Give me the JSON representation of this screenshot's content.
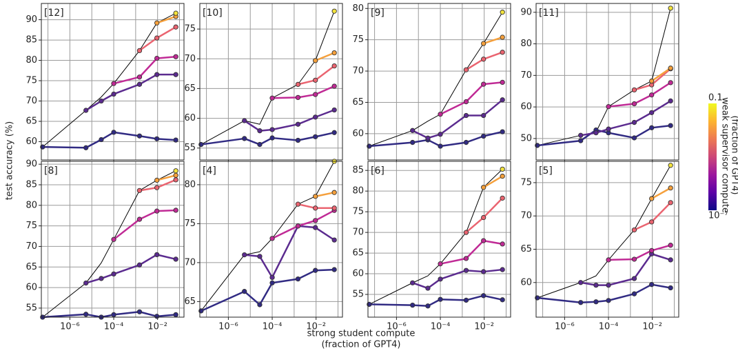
{
  "ylabel": "test accuracy (%)",
  "xlabel": [
    "strong student compute",
    "(fraction of GPT4)"
  ],
  "colorbar": {
    "title": [
      "weak supervisor compute",
      "(fraction of GPT4)"
    ],
    "lim": [
      1e-07,
      0.1
    ],
    "log": true,
    "ticks": [
      {
        "value": 0.1,
        "label": "0.1"
      },
      {
        "value": 1e-07,
        "label": "10⁻⁷"
      }
    ],
    "colors": [
      "#0d0887",
      "#5c01a6",
      "#9c179e",
      "#cc4778",
      "#ed7953",
      "#fdb42f",
      "#f0f921"
    ]
  },
  "chart_data": [
    {
      "type": "line",
      "annotation": "[12]",
      "xlog": true,
      "grid": true,
      "x": [
        5.7e-08,
        5.4e-06,
        2.7e-05,
        0.0001,
        0.0015,
        0.0093,
        0.068
      ],
      "xlim": [
        5e-08,
        0.16
      ],
      "xticks": [
        1e-06,
        0.0001,
        0.01
      ],
      "xminor": [
        1e-07,
        1e-05,
        0.001,
        0.1
      ],
      "ylim": [
        55.5,
        94
      ],
      "yticks": [
        60,
        65,
        70,
        75,
        80,
        85,
        90
      ],
      "series": [
        {
          "color": "#000000",
          "values": [
            58.7,
            67.7,
            71.0,
            74.3,
            82.4,
            89.2,
            91.6
          ]
        },
        {
          "color": "#312b83",
          "values": [
            58.7,
            58.5,
            60.5,
            62.3,
            61.4,
            60.7,
            60.4
          ]
        },
        {
          "color": "#5b2b8f",
          "values": [
            null,
            67.7,
            70.0,
            71.7,
            74.1,
            76.5,
            76.5
          ]
        },
        {
          "color": "#c02a95",
          "values": [
            null,
            null,
            null,
            74.3,
            75.9,
            80.5,
            80.9
          ]
        },
        {
          "color": "#ea6470",
          "values": [
            null,
            null,
            null,
            null,
            82.4,
            85.5,
            88.2
          ]
        },
        {
          "color": "#f5a03c",
          "values": [
            null,
            null,
            null,
            null,
            null,
            89.2,
            90.8
          ]
        },
        {
          "color": "#f3e33d",
          "values": [
            null,
            null,
            null,
            null,
            null,
            null,
            91.6
          ]
        }
      ]
    },
    {
      "type": "line",
      "annotation": "[10]",
      "xlog": true,
      "grid": true,
      "x": [
        5.7e-08,
        5.4e-06,
        2.7e-05,
        0.0001,
        0.0015,
        0.0093,
        0.068
      ],
      "xlim": [
        5e-08,
        0.16
      ],
      "xticks": [
        1e-06,
        0.0001,
        0.01
      ],
      "xminor": [
        1e-07,
        1e-05,
        0.001,
        0.1
      ],
      "ylim": [
        53,
        79.3
      ],
      "yticks": [
        55,
        60,
        65,
        70,
        75
      ],
      "series": [
        {
          "color": "#000000",
          "values": [
            55.6,
            59.6,
            59.0,
            63.4,
            65.7,
            69.7,
            78.0
          ]
        },
        {
          "color": "#312b83",
          "values": [
            55.6,
            56.6,
            55.6,
            56.7,
            56.3,
            56.9,
            57.6
          ]
        },
        {
          "color": "#5b2b8f",
          "values": [
            null,
            59.6,
            57.9,
            58.1,
            59.0,
            60.2,
            61.4
          ]
        },
        {
          "color": "#c02a95",
          "values": [
            null,
            null,
            null,
            63.4,
            63.5,
            64.0,
            65.4
          ]
        },
        {
          "color": "#ea6470",
          "values": [
            null,
            null,
            null,
            null,
            65.7,
            66.4,
            68.8
          ]
        },
        {
          "color": "#f5a03c",
          "values": [
            null,
            null,
            null,
            null,
            null,
            69.7,
            71.0
          ]
        },
        {
          "color": "#f3e33d",
          "values": [
            null,
            null,
            null,
            null,
            null,
            null,
            78.0
          ]
        }
      ]
    },
    {
      "type": "line",
      "annotation": "[9]",
      "xlog": true,
      "grid": true,
      "x": [
        5.7e-08,
        5.4e-06,
        2.7e-05,
        0.0001,
        0.0015,
        0.0093,
        0.068
      ],
      "xlim": [
        5e-08,
        0.16
      ],
      "xticks": [
        1e-06,
        0.0001,
        0.01
      ],
      "xminor": [
        1e-07,
        1e-05,
        0.001,
        0.1
      ],
      "ylim": [
        55.8,
        80.8
      ],
      "yticks": [
        60,
        65,
        70,
        75,
        80
      ],
      "series": [
        {
          "color": "#000000",
          "values": [
            58.0,
            60.5,
            62.0,
            63.1,
            70.2,
            74.4,
            79.4
          ]
        },
        {
          "color": "#312b83",
          "values": [
            58.0,
            58.6,
            59.0,
            58.0,
            58.6,
            59.6,
            60.3
          ]
        },
        {
          "color": "#5b2b8f",
          "values": [
            null,
            60.5,
            59.3,
            59.9,
            62.9,
            62.9,
            65.4
          ]
        },
        {
          "color": "#c02a95",
          "values": [
            null,
            null,
            null,
            63.1,
            65.1,
            67.9,
            68.2
          ]
        },
        {
          "color": "#ea6470",
          "values": [
            null,
            null,
            null,
            null,
            70.2,
            71.9,
            73.0
          ]
        },
        {
          "color": "#f5a03c",
          "values": [
            null,
            null,
            null,
            null,
            null,
            74.4,
            75.4
          ]
        },
        {
          "color": "#f3e33d",
          "values": [
            null,
            null,
            null,
            null,
            null,
            null,
            79.4
          ]
        }
      ]
    },
    {
      "type": "line",
      "annotation": "[11]",
      "xlog": true,
      "grid": true,
      "x": [
        5.7e-08,
        5.4e-06,
        2.7e-05,
        0.0001,
        0.0015,
        0.0093,
        0.068
      ],
      "xlim": [
        5e-08,
        0.16
      ],
      "xticks": [
        1e-06,
        0.0001,
        0.01
      ],
      "xminor": [
        1e-07,
        1e-05,
        0.001,
        0.1
      ],
      "ylim": [
        43.2,
        92.8
      ],
      "yticks": [
        50,
        60,
        70,
        80,
        90
      ],
      "series": [
        {
          "color": "#000000",
          "values": [
            47.8,
            51.0,
            52.0,
            60.1,
            65.4,
            68.2,
            91.3
          ]
        },
        {
          "color": "#312b83",
          "values": [
            47.8,
            49.3,
            52.7,
            51.8,
            50.2,
            53.4,
            54.1
          ]
        },
        {
          "color": "#5b2b8f",
          "values": [
            null,
            51.0,
            51.8,
            53.0,
            55.1,
            58.2,
            61.9
          ]
        },
        {
          "color": "#c02a95",
          "values": [
            null,
            null,
            null,
            60.1,
            61.0,
            63.8,
            67.7
          ]
        },
        {
          "color": "#ea6470",
          "values": [
            null,
            null,
            null,
            null,
            65.4,
            67.0,
            72.1
          ]
        },
        {
          "color": "#f5a03c",
          "values": [
            null,
            null,
            null,
            null,
            null,
            68.2,
            72.3
          ]
        },
        {
          "color": "#f3e33d",
          "values": [
            null,
            null,
            null,
            null,
            null,
            null,
            91.3
          ]
        }
      ]
    },
    {
      "type": "line",
      "annotation": "[8]",
      "xlog": true,
      "grid": true,
      "x": [
        5.7e-08,
        5.4e-06,
        2.7e-05,
        0.0001,
        0.0015,
        0.0093,
        0.068
      ],
      "xlim": [
        5e-08,
        0.16
      ],
      "xticks": [
        {
          "value": 1e-06,
          "label": "10⁻⁶"
        },
        {
          "value": 0.0001,
          "label": "10⁻⁴"
        },
        {
          "value": 0.01,
          "label": "10⁻²"
        }
      ],
      "xminor": [
        1e-07,
        1e-05,
        0.001,
        0.1
      ],
      "ylim": [
        52.8,
        90.7
      ],
      "yticks": [
        55,
        60,
        65,
        70,
        75,
        80,
        85,
        90
      ],
      "series": [
        {
          "color": "#000000",
          "values": [
            52.8,
            61.1,
            66.0,
            71.7,
            83.6,
            86.1,
            88.4
          ]
        },
        {
          "color": "#312b83",
          "values": [
            52.8,
            53.5,
            52.8,
            53.4,
            54.1,
            53.0,
            53.4
          ]
        },
        {
          "color": "#5b2b8f",
          "values": [
            null,
            61.1,
            62.2,
            63.3,
            65.5,
            68.0,
            66.9
          ]
        },
        {
          "color": "#c02a95",
          "values": [
            null,
            null,
            null,
            71.7,
            76.6,
            78.6,
            78.8
          ]
        },
        {
          "color": "#ea6470",
          "values": [
            null,
            null,
            null,
            null,
            83.6,
            84.3,
            86.2
          ]
        },
        {
          "color": "#f5a03c",
          "values": [
            null,
            null,
            null,
            null,
            null,
            86.1,
            87.3
          ]
        },
        {
          "color": "#f3e33d",
          "values": [
            null,
            null,
            null,
            null,
            null,
            null,
            88.4
          ]
        }
      ]
    },
    {
      "type": "line",
      "annotation": "[4]",
      "xlog": true,
      "grid": true,
      "x": [
        5.7e-08,
        5.4e-06,
        2.7e-05,
        0.0001,
        0.0015,
        0.0093,
        0.068
      ],
      "xlim": [
        5e-08,
        0.16
      ],
      "xticks": [
        {
          "value": 1e-06,
          "label": "10⁻⁶"
        },
        {
          "value": 0.0001,
          "label": "10⁻⁴"
        },
        {
          "value": 0.01,
          "label": "10⁻²"
        }
      ],
      "xminor": [
        1e-07,
        1e-05,
        0.001,
        0.1
      ],
      "ylim": [
        63,
        83
      ],
      "yticks": [
        65,
        70,
        75,
        80
      ],
      "series": [
        {
          "color": "#000000",
          "values": [
            63.8,
            71.0,
            71.4,
            73.1,
            77.5,
            78.5,
            83.0
          ]
        },
        {
          "color": "#312b83",
          "values": [
            63.8,
            66.3,
            64.6,
            67.4,
            67.9,
            69.0,
            69.1
          ]
        },
        {
          "color": "#5b2b8f",
          "values": [
            null,
            71.0,
            70.8,
            68.1,
            74.7,
            74.5,
            72.9
          ]
        },
        {
          "color": "#c02a95",
          "values": [
            null,
            null,
            null,
            73.1,
            74.7,
            75.4,
            76.7
          ]
        },
        {
          "color": "#ea6470",
          "values": [
            null,
            null,
            null,
            null,
            77.5,
            77.0,
            77.0
          ]
        },
        {
          "color": "#f5a03c",
          "values": [
            null,
            null,
            null,
            null,
            null,
            78.5,
            79.0
          ]
        },
        {
          "color": "#f3e33d",
          "values": [
            null,
            null,
            null,
            null,
            null,
            null,
            83.0
          ]
        }
      ]
    },
    {
      "type": "line",
      "annotation": "[6]",
      "xlog": true,
      "grid": true,
      "x": [
        5.7e-08,
        5.4e-06,
        2.7e-05,
        0.0001,
        0.0015,
        0.0093,
        0.068
      ],
      "xlim": [
        5e-08,
        0.16
      ],
      "xticks": [
        {
          "value": 1e-06,
          "label": "10⁻⁶"
        },
        {
          "value": 0.0001,
          "label": "10⁻⁴"
        },
        {
          "value": 0.01,
          "label": "10⁻²"
        }
      ],
      "xminor": [
        1e-07,
        1e-05,
        0.001,
        0.1
      ],
      "ylim": [
        49.5,
        87.2
      ],
      "yticks": [
        55,
        60,
        65,
        70,
        75,
        80,
        85
      ],
      "series": [
        {
          "color": "#000000",
          "values": [
            52.6,
            57.8,
            59.5,
            62.4,
            70.0,
            80.9,
            85.3
          ]
        },
        {
          "color": "#312b83",
          "values": [
            52.6,
            52.4,
            52.2,
            53.8,
            53.6,
            54.7,
            53.7
          ]
        },
        {
          "color": "#5b2b8f",
          "values": [
            null,
            57.8,
            56.5,
            58.7,
            60.8,
            60.5,
            61.0
          ]
        },
        {
          "color": "#c02a95",
          "values": [
            null,
            null,
            null,
            62.4,
            63.7,
            68.0,
            67.2
          ]
        },
        {
          "color": "#ea6470",
          "values": [
            null,
            null,
            null,
            null,
            70.0,
            73.6,
            78.3
          ]
        },
        {
          "color": "#f5a03c",
          "values": [
            null,
            null,
            null,
            null,
            null,
            80.9,
            83.6
          ]
        },
        {
          "color": "#f3e33d",
          "values": [
            null,
            null,
            null,
            null,
            null,
            null,
            85.3
          ]
        }
      ]
    },
    {
      "type": "line",
      "annotation": "[5]",
      "xlog": true,
      "grid": true,
      "x": [
        5.7e-08,
        5.4e-06,
        2.7e-05,
        0.0001,
        0.0015,
        0.0093,
        0.068
      ],
      "xlim": [
        5e-08,
        0.16
      ],
      "xticks": [
        {
          "value": 1e-06,
          "label": "10⁻⁶"
        },
        {
          "value": 0.0001,
          "label": "10⁻⁴"
        },
        {
          "value": 0.01,
          "label": "10⁻²"
        }
      ],
      "xminor": [
        1e-07,
        1e-05,
        0.001,
        0.1
      ],
      "ylim": [
        54.8,
        78.2
      ],
      "yticks": [
        60,
        65,
        70,
        75
      ],
      "series": [
        {
          "color": "#000000",
          "values": [
            57.7,
            60.0,
            61.0,
            63.4,
            67.9,
            72.6,
            77.6
          ]
        },
        {
          "color": "#312b83",
          "values": [
            57.7,
            57.0,
            57.1,
            57.3,
            58.3,
            59.7,
            59.2
          ]
        },
        {
          "color": "#5b2b8f",
          "values": [
            null,
            60.0,
            59.6,
            59.6,
            60.6,
            64.3,
            63.4
          ]
        },
        {
          "color": "#c02a95",
          "values": [
            null,
            null,
            null,
            63.4,
            63.5,
            64.8,
            65.6
          ]
        },
        {
          "color": "#ea6470",
          "values": [
            null,
            null,
            null,
            null,
            67.9,
            69.1,
            72.0
          ]
        },
        {
          "color": "#f5a03c",
          "values": [
            null,
            null,
            null,
            null,
            null,
            72.6,
            74.2
          ]
        },
        {
          "color": "#f3e33d",
          "values": [
            null,
            null,
            null,
            null,
            null,
            null,
            77.6
          ]
        }
      ]
    }
  ]
}
